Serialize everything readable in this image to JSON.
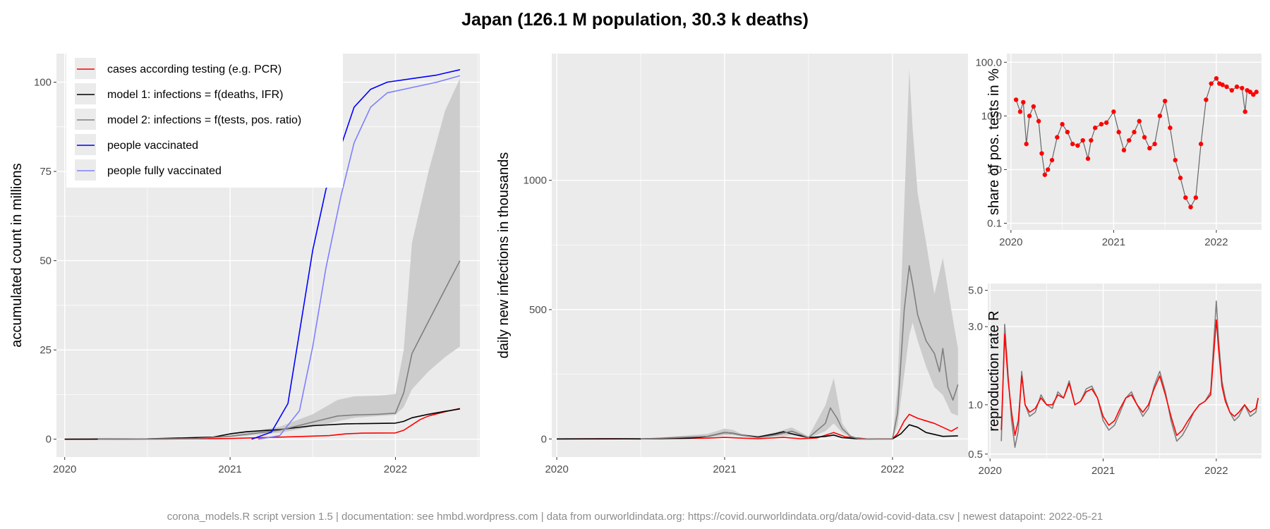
{
  "title": "Japan (126.1 M population, 30.3 k deaths)",
  "footer": "corona_models.R script version 1.5 | documentation: see hmbd.wordpress.com | data from ourworldindata.org: https://covid.ourworldindata.org/data/owid-covid-data.csv | newest datapoint: 2022-05-21",
  "colors": {
    "cases": "#ff0000",
    "model1": "#000000",
    "model2": "#7f7f7f",
    "band": "#cccccc",
    "vaccinated": "#0000ff",
    "fully_vaccinated": "#7f7fff",
    "panel_bg": "#ebebeb",
    "grid": "#ffffff"
  },
  "chart_data": [
    {
      "id": "accumulated",
      "type": "line",
      "ylabel": "accumulated count in millions",
      "xlim": [
        2019.95,
        2022.51
      ],
      "ylim": [
        -5,
        108
      ],
      "x_ticks": [
        {
          "v": 2020,
          "label": "2020"
        },
        {
          "v": 2021,
          "label": "2021"
        },
        {
          "v": 2022,
          "label": "2022"
        }
      ],
      "y_ticks": [
        {
          "v": 0,
          "label": "0"
        },
        {
          "v": 25,
          "label": "25"
        },
        {
          "v": 50,
          "label": "50"
        },
        {
          "v": 75,
          "label": "75"
        },
        {
          "v": 100,
          "label": "100"
        }
      ],
      "grid": true,
      "legend": [
        {
          "label": "cases according testing (e.g. PCR)",
          "color": "#ff0000"
        },
        {
          "label": "model 1: infections = f(deaths, IFR)",
          "color": "#000000"
        },
        {
          "label": "model 2: infections = f(tests, pos. ratio)",
          "color": "#7f7f7f"
        },
        {
          "label": "people vaccinated",
          "color": "#0000ff"
        },
        {
          "label": "people fully vaccinated",
          "color": "#7f7fff"
        }
      ],
      "legend_position": "top-left",
      "band": {
        "x": [
          2020.2,
          2020.8,
          2021.0,
          2021.3,
          2021.5,
          2021.65,
          2021.75,
          2021.9,
          2022.0,
          2022.05,
          2022.1,
          2022.2,
          2022.3,
          2022.39
        ],
        "lower": [
          0,
          0.2,
          0.6,
          1.8,
          3.5,
          5.0,
          6.0,
          6.5,
          6.8,
          9,
          14,
          19,
          23,
          26
        ],
        "upper": [
          0,
          0.3,
          1.2,
          3.5,
          7.0,
          11.0,
          12.0,
          12.2,
          12.6,
          25,
          55,
          75,
          92,
          101
        ]
      },
      "series": [
        {
          "name": "cases according testing (e.g. PCR)",
          "color": "#ff0000",
          "x": [
            2020.0,
            2020.3,
            2020.6,
            2020.9,
            2021.0,
            2021.2,
            2021.4,
            2021.6,
            2021.7,
            2021.8,
            2022.0,
            2022.05,
            2022.1,
            2022.15,
            2022.2,
            2022.3,
            2022.39
          ],
          "y": [
            0,
            0.01,
            0.05,
            0.15,
            0.2,
            0.45,
            0.7,
            1.0,
            1.5,
            1.7,
            1.75,
            2.5,
            4.0,
            5.5,
            6.5,
            7.7,
            8.6
          ]
        },
        {
          "name": "model 1: infections = f(deaths, IFR)",
          "color": "#000000",
          "x": [
            2020.0,
            2020.5,
            2020.9,
            2021.0,
            2021.1,
            2021.3,
            2021.5,
            2021.7,
            2022.0,
            2022.05,
            2022.1,
            2022.2,
            2022.3,
            2022.39
          ],
          "y": [
            0,
            0.1,
            0.6,
            1.5,
            2.1,
            2.7,
            3.8,
            4.3,
            4.5,
            5.0,
            6.0,
            7.0,
            7.8,
            8.5
          ]
        },
        {
          "name": "model 2: infections = f(tests, pos. ratio)",
          "color": "#7f7f7f",
          "x": [
            2020.2,
            2020.8,
            2021.0,
            2021.3,
            2021.5,
            2021.65,
            2021.75,
            2021.9,
            2022.0,
            2022.05,
            2022.1,
            2022.2,
            2022.3,
            2022.39
          ],
          "y": [
            0,
            0.2,
            0.8,
            2.5,
            4.8,
            6.5,
            6.8,
            7.0,
            7.3,
            13,
            24,
            33,
            42,
            50
          ]
        },
        {
          "name": "people vaccinated",
          "color": "#0000ff",
          "x": [
            2021.13,
            2021.25,
            2021.35,
            2021.42,
            2021.5,
            2021.58,
            2021.67,
            2021.75,
            2021.85,
            2021.95,
            2022.1,
            2022.25,
            2022.39
          ],
          "y": [
            0,
            2,
            10,
            30,
            53,
            70,
            82,
            93,
            98,
            100,
            101,
            102,
            103.5
          ]
        },
        {
          "name": "people fully vaccinated",
          "color": "#7f7fff",
          "x": [
            2021.17,
            2021.3,
            2021.42,
            2021.5,
            2021.58,
            2021.67,
            2021.75,
            2021.85,
            2021.95,
            2022.1,
            2022.25,
            2022.39
          ],
          "y": [
            0,
            1,
            8,
            26,
            48,
            68,
            83,
            93,
            97,
            98.5,
            100,
            101.8
          ]
        }
      ]
    },
    {
      "id": "daily",
      "type": "line",
      "ylabel": "daily new infections in thousands",
      "xlim": [
        2019.97,
        2022.45
      ],
      "ylim": [
        -70,
        1490
      ],
      "x_ticks": [
        {
          "v": 2020,
          "label": "2020"
        },
        {
          "v": 2021,
          "label": "2021"
        },
        {
          "v": 2022,
          "label": "2022"
        }
      ],
      "y_ticks": [
        {
          "v": 0,
          "label": "0"
        },
        {
          "v": 500,
          "label": "500"
        },
        {
          "v": 1000,
          "label": "1000"
        }
      ],
      "grid": true,
      "band": {
        "x": [
          2020.5,
          2020.9,
          2021.0,
          2021.05,
          2021.1,
          2021.2,
          2021.3,
          2021.4,
          2021.5,
          2021.6,
          2021.65,
          2021.7,
          2021.75,
          2021.8,
          2021.9,
          2022.0,
          2022.03,
          2022.07,
          2022.1,
          2022.12,
          2022.15,
          2022.2,
          2022.25,
          2022.3,
          2022.35,
          2022.39
        ],
        "lower": [
          0,
          5,
          15,
          15,
          10,
          3,
          10,
          15,
          3,
          30,
          60,
          25,
          5,
          0,
          0,
          0,
          50,
          250,
          400,
          450,
          380,
          280,
          200,
          170,
          100,
          90
        ],
        "upper": [
          0,
          20,
          40,
          35,
          20,
          10,
          25,
          45,
          10,
          130,
          235,
          60,
          15,
          0,
          0,
          0,
          200,
          900,
          1430,
          1200,
          950,
          760,
          560,
          700,
          500,
          350
        ]
      },
      "series": [
        {
          "name": "cases according testing (e.g. PCR)",
          "color": "#ff0000",
          "x": [
            2020.0,
            2020.3,
            2020.5,
            2020.6,
            2020.9,
            2021.0,
            2021.1,
            2021.2,
            2021.35,
            2021.45,
            2021.55,
            2021.65,
            2021.72,
            2021.85,
            2022.0,
            2022.03,
            2022.07,
            2022.1,
            2022.15,
            2022.2,
            2022.25,
            2022.3,
            2022.35,
            2022.39
          ],
          "y": [
            0,
            0.5,
            0,
            1,
            3,
            6,
            3,
            1,
            6,
            1,
            4,
            25,
            8,
            0,
            1,
            20,
            70,
            95,
            80,
            70,
            60,
            45,
            30,
            45
          ]
        },
        {
          "name": "model 1: infections = f(deaths, IFR)",
          "color": "#000000",
          "x": [
            2020.0,
            2020.5,
            2020.8,
            2020.9,
            2021.0,
            2021.05,
            2021.1,
            2021.2,
            2021.3,
            2021.35,
            2021.4,
            2021.5,
            2021.6,
            2021.65,
            2021.7,
            2021.8,
            2022.0,
            2022.05,
            2022.1,
            2022.15,
            2022.2,
            2022.3,
            2022.39
          ],
          "y": [
            0,
            0.3,
            3,
            10,
            25,
            22,
            15,
            8,
            20,
            28,
            20,
            5,
            10,
            15,
            5,
            0,
            0,
            20,
            55,
            45,
            25,
            10,
            12
          ]
        },
        {
          "name": "model 2: infections = f(tests, pos. ratio)",
          "color": "#7f7f7f",
          "x": [
            2020.5,
            2020.9,
            2021.0,
            2021.05,
            2021.1,
            2021.2,
            2021.3,
            2021.4,
            2021.5,
            2021.6,
            2021.63,
            2021.67,
            2021.7,
            2021.75,
            2021.8,
            2021.9,
            2022.0,
            2022.03,
            2022.07,
            2022.1,
            2022.12,
            2022.15,
            2022.2,
            2022.25,
            2022.28,
            2022.3,
            2022.33,
            2022.36,
            2022.39
          ],
          "y": [
            0,
            10,
            25,
            22,
            15,
            5,
            15,
            30,
            5,
            60,
            120,
            80,
            40,
            10,
            0,
            0,
            0,
            100,
            500,
            670,
            600,
            480,
            380,
            330,
            260,
            350,
            200,
            150,
            210
          ]
        }
      ]
    },
    {
      "id": "share_pos_tests",
      "type": "scatter",
      "ylabel": "share of pos. tests in %",
      "scale": "log",
      "xlim": [
        2019.96,
        2022.44
      ],
      "ylim": [
        0.075,
        145
      ],
      "x_ticks": [
        {
          "v": 2020,
          "label": "2020"
        },
        {
          "v": 2021,
          "label": "2021"
        },
        {
          "v": 2022,
          "label": "2022"
        }
      ],
      "y_ticks": [
        {
          "v": 0.1,
          "label": "0.1"
        },
        {
          "v": 1.0,
          "label": "1.0"
        },
        {
          "v": 10.0,
          "label": "10.0"
        },
        {
          "v": 100.0,
          "label": "100.0"
        }
      ],
      "grid": true,
      "series": [
        {
          "name": "share of pos. tests",
          "color": "#ff0000",
          "x": [
            2020.05,
            2020.09,
            2020.12,
            2020.15,
            2020.18,
            2020.22,
            2020.27,
            2020.3,
            2020.33,
            2020.36,
            2020.4,
            2020.45,
            2020.5,
            2020.55,
            2020.6,
            2020.65,
            2020.7,
            2020.75,
            2020.78,
            2020.82,
            2020.88,
            2020.93,
            2021.0,
            2021.05,
            2021.1,
            2021.15,
            2021.2,
            2021.25,
            2021.3,
            2021.35,
            2021.4,
            2021.45,
            2021.5,
            2021.55,
            2021.6,
            2021.65,
            2021.7,
            2021.75,
            2021.8,
            2021.85,
            2021.9,
            2021.95,
            2022.0,
            2022.03,
            2022.06,
            2022.1,
            2022.15,
            2022.2,
            2022.25,
            2022.28,
            2022.3,
            2022.33,
            2022.36,
            2022.39
          ],
          "y": [
            20,
            12,
            18,
            3,
            10,
            15,
            8,
            2,
            0.8,
            1.0,
            1.5,
            4,
            7,
            5,
            3,
            2.8,
            3.5,
            1.6,
            3.5,
            6,
            7,
            7.5,
            12,
            5,
            2.3,
            3.5,
            5,
            8,
            4,
            2.5,
            3,
            10,
            19,
            6,
            1.5,
            0.7,
            0.3,
            0.2,
            0.3,
            3,
            20,
            40,
            50,
            40,
            38,
            35,
            30,
            35,
            33,
            12,
            30,
            28,
            25,
            28
          ]
        }
      ]
    },
    {
      "id": "reproduction_rate",
      "type": "line",
      "ylabel": "reproduction rate R",
      "scale": "log",
      "xlim": [
        2019.98,
        2022.4
      ],
      "ylim": [
        0.47,
        5.5
      ],
      "x_ticks": [
        {
          "v": 2020,
          "label": "2020"
        },
        {
          "v": 2021,
          "label": "2021"
        },
        {
          "v": 2022,
          "label": "2022"
        }
      ],
      "y_ticks": [
        {
          "v": 0.5,
          "label": "0.5"
        },
        {
          "v": 1.0,
          "label": "1.0"
        },
        {
          "v": 3.0,
          "label": "3.0"
        },
        {
          "v": 5.0,
          "label": "5.0"
        }
      ],
      "grid": true,
      "series": [
        {
          "name": "model 2",
          "color": "#7f7f7f",
          "x": [
            2020.1,
            2020.13,
            2020.16,
            2020.19,
            2020.22,
            2020.25,
            2020.28,
            2020.31,
            2020.35,
            2020.4,
            2020.45,
            2020.5,
            2020.55,
            2020.6,
            2020.65,
            2020.7,
            2020.75,
            2020.8,
            2020.85,
            2020.9,
            2020.95,
            2021.0,
            2021.05,
            2021.1,
            2021.15,
            2021.2,
            2021.25,
            2021.3,
            2021.35,
            2021.4,
            2021.45,
            2021.5,
            2021.55,
            2021.6,
            2021.65,
            2021.7,
            2021.75,
            2021.8,
            2021.85,
            2021.9,
            2021.95,
            2022.0,
            2022.02,
            2022.05,
            2022.08,
            2022.12,
            2022.16,
            2022.2,
            2022.25,
            2022.3,
            2022.35,
            2022.37
          ],
          "y": [
            0.6,
            3.1,
            1.5,
            0.8,
            0.55,
            0.7,
            1.6,
            1.0,
            0.85,
            0.9,
            1.15,
            1.0,
            0.95,
            1.2,
            1.1,
            1.4,
            1.0,
            1.05,
            1.25,
            1.3,
            1.1,
            0.8,
            0.7,
            0.75,
            0.9,
            1.1,
            1.2,
            1.0,
            0.85,
            0.95,
            1.3,
            1.6,
            1.2,
            0.8,
            0.6,
            0.65,
            0.75,
            0.9,
            1.0,
            1.05,
            1.2,
            4.3,
            2.5,
            1.4,
            1.1,
            0.9,
            0.8,
            0.85,
            1.0,
            0.85,
            0.9,
            1.1
          ]
        },
        {
          "name": "cases",
          "color": "#ff0000",
          "x": [
            2020.1,
            2020.13,
            2020.16,
            2020.19,
            2020.22,
            2020.25,
            2020.28,
            2020.31,
            2020.35,
            2020.4,
            2020.45,
            2020.5,
            2020.55,
            2020.6,
            2020.65,
            2020.7,
            2020.75,
            2020.8,
            2020.85,
            2020.9,
            2020.95,
            2021.0,
            2021.05,
            2021.1,
            2021.15,
            2021.2,
            2021.25,
            2021.3,
            2021.35,
            2021.4,
            2021.45,
            2021.5,
            2021.55,
            2021.6,
            2021.65,
            2021.7,
            2021.75,
            2021.8,
            2021.85,
            2021.9,
            2021.95,
            2022.0,
            2022.02,
            2022.05,
            2022.08,
            2022.12,
            2022.16,
            2022.2,
            2022.25,
            2022.3,
            2022.35,
            2022.37
          ],
          "y": [
            0.7,
            2.7,
            1.4,
            0.9,
            0.65,
            0.8,
            1.5,
            1.0,
            0.9,
            0.95,
            1.1,
            1.0,
            1.0,
            1.15,
            1.1,
            1.35,
            1.0,
            1.05,
            1.2,
            1.25,
            1.1,
            0.85,
            0.75,
            0.8,
            0.95,
            1.1,
            1.15,
            1.0,
            0.9,
            1.0,
            1.25,
            1.5,
            1.15,
            0.85,
            0.65,
            0.7,
            0.8,
            0.9,
            1.0,
            1.05,
            1.15,
            3.3,
            2.2,
            1.3,
            1.05,
            0.9,
            0.85,
            0.9,
            1.0,
            0.9,
            0.95,
            1.1
          ]
        }
      ]
    }
  ]
}
